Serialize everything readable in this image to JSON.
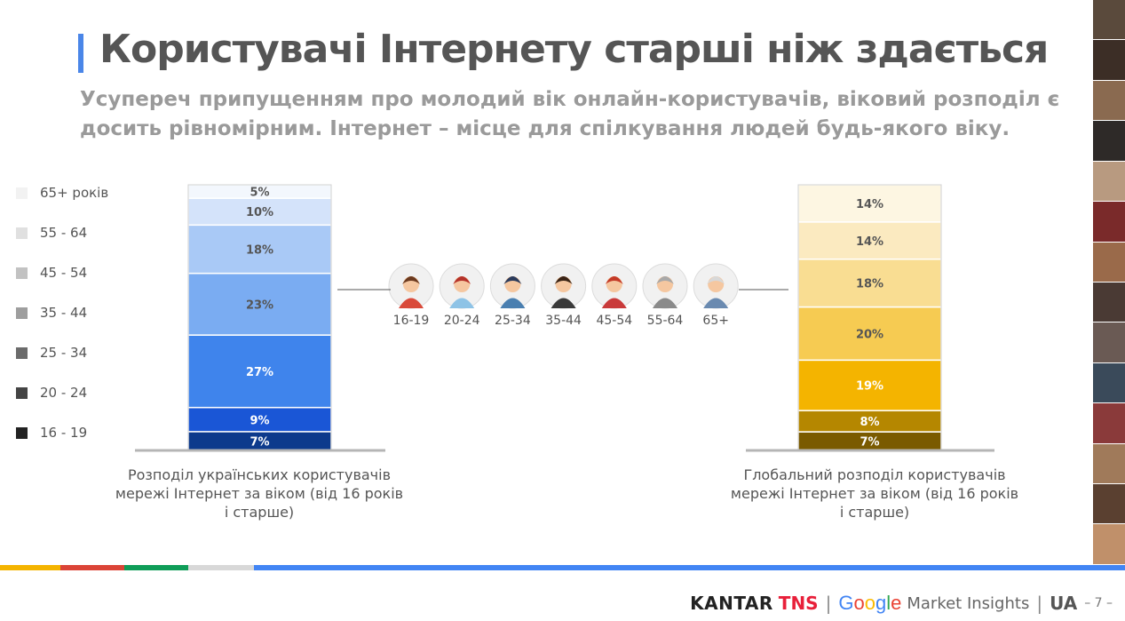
{
  "header": {
    "title": "Користувачі Інтернету старші ніж здається",
    "subtitle": "Усупереч припущенням про молодий вік онлайн-користувачів, віковий розподіл є досить рівномірним. Інтернет – місце для спілкування людей будь-якого віку."
  },
  "legend": [
    {
      "label": "65+ років",
      "color": "#f2f2f2"
    },
    {
      "label": "55 - 64",
      "color": "#e0e0e0"
    },
    {
      "label": "45 - 54",
      "color": "#c2c2c2"
    },
    {
      "label": "35 - 44",
      "color": "#9e9e9e"
    },
    {
      "label": "25 - 34",
      "color": "#6b6b6b"
    },
    {
      "label": "20 - 24",
      "color": "#444444"
    },
    {
      "label": "16 - 19",
      "color": "#222222"
    }
  ],
  "chart_data": [
    {
      "type": "bar",
      "stacked": true,
      "categories": [
        "16-19",
        "20-24",
        "25-34",
        "35-44",
        "45-54",
        "55-64",
        "65+"
      ],
      "values": [
        7,
        9,
        27,
        23,
        18,
        10,
        5
      ],
      "labels": [
        "7%",
        "9%",
        "27%",
        "23%",
        "18%",
        "10%",
        "5%"
      ],
      "colors": [
        "#0d3a8c",
        "#1a56d6",
        "#3f84ec",
        "#7aacf2",
        "#a9c9f6",
        "#d4e3fa",
        "#f3f7fd"
      ],
      "text_colors": [
        "#ffffff",
        "#ffffff",
        "#ffffff",
        "#555555",
        "#555555",
        "#555555",
        "#555555"
      ],
      "caption": "Розподіл українських користувачів мережі Інтернет за віком (від 16 років і старше)"
    },
    {
      "type": "bar",
      "stacked": true,
      "categories": [
        "16-19",
        "20-24",
        "25-34",
        "35-44",
        "45-54",
        "55-64",
        "65+"
      ],
      "values": [
        7,
        8,
        19,
        20,
        18,
        14,
        14
      ],
      "labels": [
        "7%",
        "8%",
        "19%",
        "20%",
        "18%",
        "14%",
        "14%"
      ],
      "colors": [
        "#7a5a00",
        "#b58700",
        "#f4b400",
        "#f6cb52",
        "#f9dd92",
        "#fbeac0",
        "#fdf6e2"
      ],
      "text_colors": [
        "#ffffff",
        "#ffffff",
        "#ffffff",
        "#555555",
        "#555555",
        "#555555",
        "#555555"
      ],
      "caption": "Глобальний розподіл користувачів мережі Інтернет за віком (від 16 років і старше)"
    }
  ],
  "age_groups": [
    "16-19",
    "20-24",
    "25-34",
    "35-44",
    "45-54",
    "55-64",
    "65+"
  ],
  "footer": {
    "kantar": "KANTAR",
    "tns": "TNS",
    "sep1": "|",
    "google_letters": [
      {
        "ch": "G",
        "color": "#4285f4"
      },
      {
        "ch": "o",
        "color": "#ea4335"
      },
      {
        "ch": "o",
        "color": "#fbbc05"
      },
      {
        "ch": "g",
        "color": "#4285f4"
      },
      {
        "ch": "l",
        "color": "#34a853"
      },
      {
        "ch": "e",
        "color": "#ea4335"
      }
    ],
    "market_insights": "Market Insights",
    "sep2": "|",
    "country": "UA",
    "page": "– 7 –"
  }
}
